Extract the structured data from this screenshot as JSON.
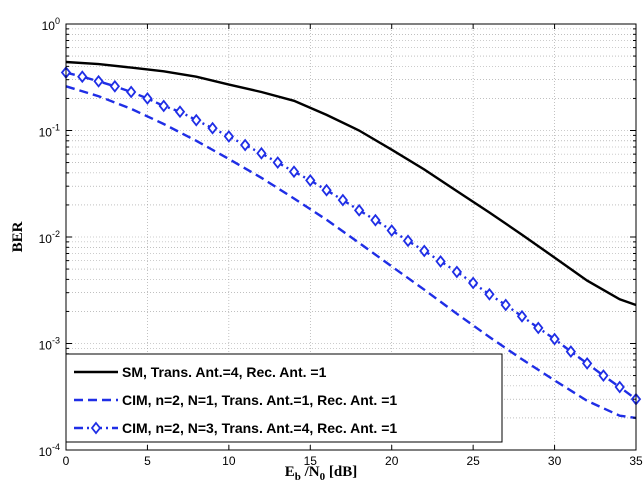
{
  "chart_data": {
    "type": "line",
    "xlabel_parts": {
      "E": "E",
      "b": "b",
      "slash": " /N",
      "zero": "0",
      "unit": " [dB]"
    },
    "ylabel": "BER",
    "xlim": [
      0,
      35
    ],
    "ylim": [
      0.0001,
      1
    ],
    "yscale": "log",
    "grid": true,
    "legend_position": "bottom-left",
    "x_ticks": [
      0,
      5,
      10,
      15,
      20,
      25,
      30,
      35
    ],
    "y_ticks": [
      {
        "value": 1,
        "base": "10",
        "exp": "0"
      },
      {
        "value": 0.1,
        "base": "10",
        "exp": "-1"
      },
      {
        "value": 0.01,
        "base": "10",
        "exp": "-2"
      },
      {
        "value": 0.001,
        "base": "10",
        "exp": "-3"
      },
      {
        "value": 0.0001,
        "base": "10",
        "exp": "-4"
      }
    ],
    "series": [
      {
        "name": "SM, Trans. Ant.=4, Rec. Ant. =1",
        "color": "#000000",
        "style": "solid",
        "marker": "none",
        "x": [
          0,
          2,
          4,
          6,
          8,
          10,
          12,
          14,
          16,
          18,
          20,
          22,
          24,
          26,
          28,
          30,
          32,
          34,
          35
        ],
        "y": [
          0.44,
          0.42,
          0.39,
          0.36,
          0.32,
          0.27,
          0.23,
          0.19,
          0.14,
          0.1,
          0.066,
          0.043,
          0.027,
          0.017,
          0.0105,
          0.0064,
          0.0039,
          0.0026,
          0.0023
        ]
      },
      {
        "name": "CIM, n=2, N=1, Trans. Ant.=1, Rec. Ant. =1",
        "color": "#1f2ee6",
        "style": "dashed",
        "marker": "none",
        "x": [
          0,
          2,
          4,
          6,
          8,
          10,
          12,
          14,
          16,
          18,
          20,
          22,
          24,
          26,
          28,
          30,
          32,
          34,
          35
        ],
        "y": [
          0.26,
          0.21,
          0.16,
          0.115,
          0.08,
          0.054,
          0.036,
          0.023,
          0.0145,
          0.0088,
          0.0053,
          0.0032,
          0.0019,
          0.00115,
          0.00071,
          0.00045,
          0.00029,
          0.00021,
          0.0002
        ]
      },
      {
        "name": "CIM, n=2, N=3, Trans. Ant.=4, Rec. Ant. =1",
        "color": "#1f2ee6",
        "style": "dash-dot",
        "marker": "diamond",
        "x": [
          0,
          1,
          2,
          3,
          4,
          5,
          6,
          7,
          8,
          9,
          10,
          11,
          12,
          13,
          14,
          15,
          16,
          17,
          18,
          19,
          20,
          21,
          22,
          23,
          24,
          25,
          26,
          27,
          28,
          29,
          30,
          31,
          32,
          33,
          34,
          35
        ],
        "y": [
          0.35,
          0.32,
          0.29,
          0.26,
          0.23,
          0.2,
          0.17,
          0.15,
          0.125,
          0.105,
          0.088,
          0.073,
          0.061,
          0.05,
          0.041,
          0.034,
          0.0275,
          0.0222,
          0.0178,
          0.0144,
          0.0115,
          0.0092,
          0.0074,
          0.0059,
          0.0047,
          0.0037,
          0.0029,
          0.0023,
          0.0018,
          0.0014,
          0.0011,
          0.00084,
          0.00065,
          0.0005,
          0.00039,
          0.0003
        ]
      }
    ]
  }
}
